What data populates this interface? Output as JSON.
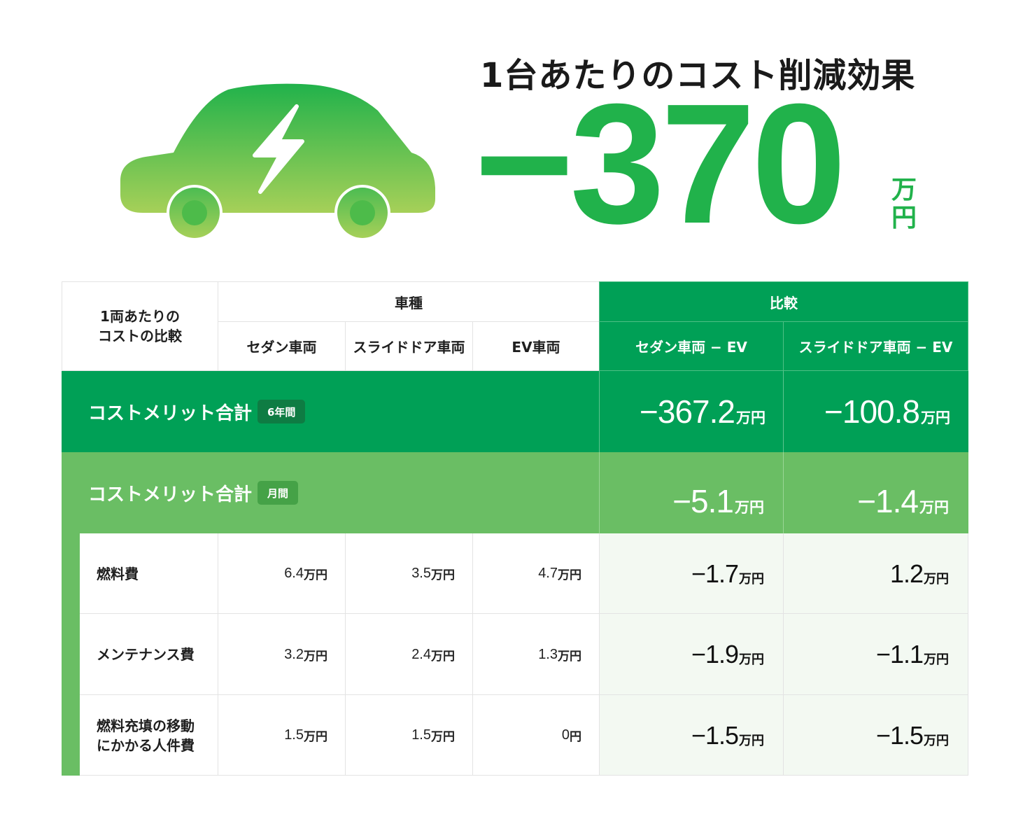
{
  "hero": {
    "title": "1台あたりのコスト削減効果",
    "value": "−370",
    "unit_top": "万",
    "unit_bottom": "円",
    "icon": "ev-car-icon",
    "colors": {
      "accent": "#21b24b",
      "car_top": "#21b24b",
      "car_bottom": "#a6d058"
    }
  },
  "table": {
    "corner_label": "1両あたりの\nコストの比較",
    "group_vehicle": "車種",
    "group_compare": "比較",
    "columns": [
      "セダン車両",
      "スライドドア車両",
      "EV車両",
      "セダン車両 − EV",
      "スライドドア車両 − EV"
    ],
    "total_6y": {
      "label": "コストメリット合計",
      "tag": "6年間",
      "values": [
        {
          "num": "−367.2",
          "unit": "万円"
        },
        {
          "num": "−100.8",
          "unit": "万円"
        }
      ]
    },
    "total_month": {
      "label": "コストメリット合計",
      "tag": "月間",
      "values": [
        {
          "num": "−5.1",
          "unit": "万円"
        },
        {
          "num": "−1.4",
          "unit": "万円"
        }
      ]
    },
    "rows": [
      {
        "label": "燃料費",
        "values": [
          {
            "num": "6.4",
            "unit": "万円"
          },
          {
            "num": "3.5",
            "unit": "万円"
          },
          {
            "num": "4.7",
            "unit": "万円"
          }
        ],
        "compare": [
          {
            "num": "−1.7",
            "unit": "万円"
          },
          {
            "num": "1.2",
            "unit": "万円"
          }
        ]
      },
      {
        "label": "メンテナンス費",
        "values": [
          {
            "num": "3.2",
            "unit": "万円"
          },
          {
            "num": "2.4",
            "unit": "万円"
          },
          {
            "num": "1.3",
            "unit": "万円"
          }
        ],
        "compare": [
          {
            "num": "−1.9",
            "unit": "万円"
          },
          {
            "num": "−1.1",
            "unit": "万円"
          }
        ]
      },
      {
        "label": "燃料充填の移動\nにかかる人件費",
        "values": [
          {
            "num": "1.5",
            "unit": "万円"
          },
          {
            "num": "1.5",
            "unit": "万円"
          },
          {
            "num": "0",
            "unit": "円"
          }
        ],
        "compare": [
          {
            "num": "−1.5",
            "unit": "万円"
          },
          {
            "num": "−1.5",
            "unit": "万円"
          }
        ]
      }
    ],
    "colors": {
      "dark_green": "#00a056",
      "mid_green": "#6abe64",
      "compare_bg": "#f3f9f2"
    }
  }
}
